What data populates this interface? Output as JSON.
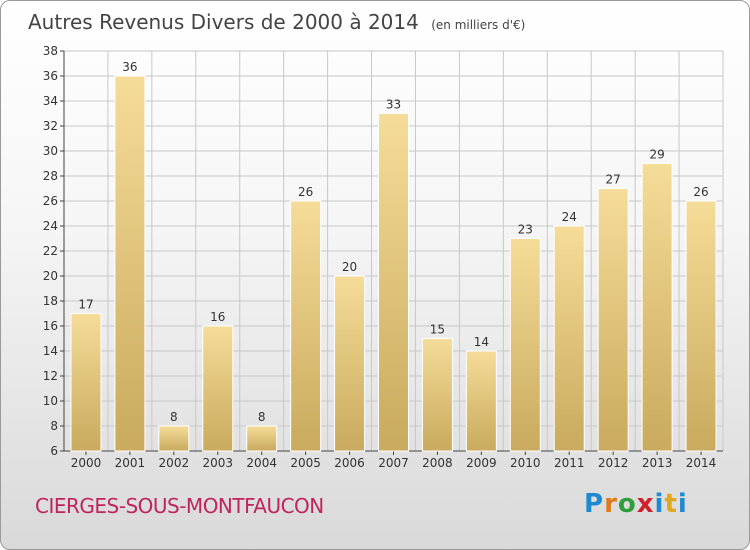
{
  "header": {
    "title": "Autres Revenus Divers de 2000 à 2014",
    "unit": "(en milliers d'€)"
  },
  "footer": {
    "city": "CIERGES-SOUS-MONTFAUCON",
    "logo": "Proxiti",
    "logo_colors": [
      "#1f8ad0",
      "#e07a1c",
      "#2f9f3c",
      "#d0202c",
      "#1f8ad0",
      "#e0a81c"
    ]
  },
  "colors": {
    "bar_light": "#f5dc98",
    "bar_dark": "#c9aa5e",
    "grid": "#c8c8c8",
    "city": "#c0245c"
  },
  "chart_data": {
    "type": "bar",
    "title": "Autres Revenus Divers de 2000 à 2014",
    "subtitle": "(en milliers d'€)",
    "xlabel": "",
    "ylabel": "",
    "categories": [
      "2000",
      "2001",
      "2002",
      "2003",
      "2004",
      "2005",
      "2006",
      "2007",
      "2008",
      "2009",
      "2010",
      "2011",
      "2012",
      "2013",
      "2014"
    ],
    "values": [
      17,
      36,
      8,
      16,
      8,
      26,
      20,
      33,
      15,
      14,
      23,
      24,
      27,
      29,
      26
    ],
    "ylim": [
      6,
      38
    ],
    "yticks": [
      6,
      8,
      10,
      12,
      14,
      16,
      18,
      20,
      22,
      24,
      26,
      28,
      30,
      32,
      34,
      36,
      38
    ],
    "grid": true,
    "legend": "none"
  }
}
